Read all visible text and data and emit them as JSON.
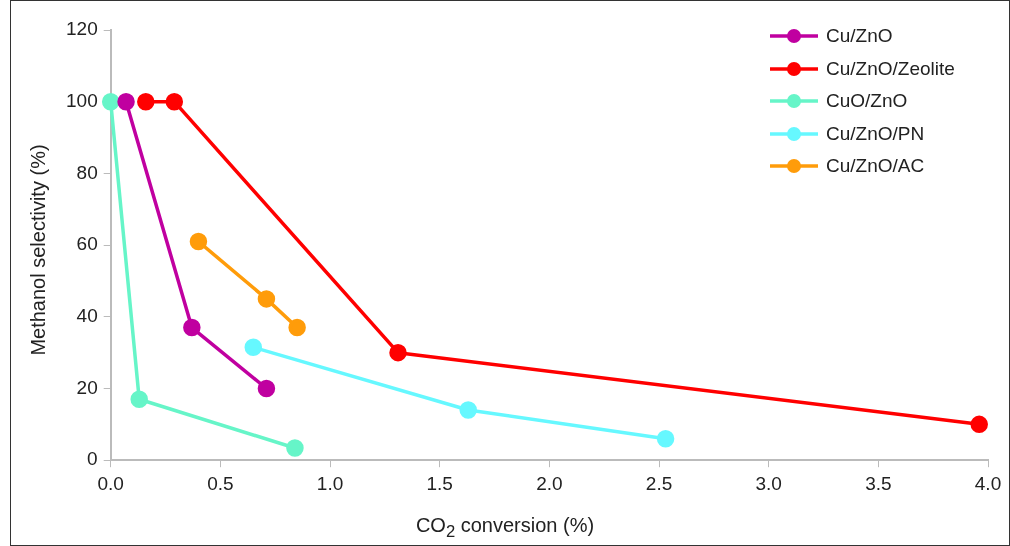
{
  "chart_data": {
    "type": "line",
    "xlabel": "CO$_{2}$ conversion (%)",
    "ylabel": "Methanol selectivity (%)",
    "xlim": [
      0,
      4
    ],
    "xticks": [
      {
        "value": 0,
        "label": "0.0"
      },
      {
        "value": 0.5,
        "label": "0.5"
      },
      {
        "value": 1,
        "label": "1.0"
      },
      {
        "value": 1.5,
        "label": "1.5"
      },
      {
        "value": 2,
        "label": "2.0"
      },
      {
        "value": 2.5,
        "label": "2.5"
      },
      {
        "value": 3,
        "label": "3.0"
      },
      {
        "value": 3.5,
        "label": "3.5"
      },
      {
        "value": 4,
        "label": "4.0"
      }
    ],
    "ylim": [
      0,
      120
    ],
    "yticks": [
      0,
      20,
      40,
      60,
      80,
      100,
      120
    ],
    "grid": false,
    "legend": "top right",
    "marker": "circle",
    "line_style": "solid",
    "series": [
      {
        "name": "Cu/ZnO",
        "color": "#c000a0",
        "x": [
          0.07,
          0.37,
          0.71
        ],
        "values": [
          100,
          37,
          20
        ]
      },
      {
        "name": "Cu/ZnO/Zeolite",
        "color": "#ff0000",
        "x": [
          0.16,
          0.29,
          1.31,
          3.96
        ],
        "values": [
          100,
          100,
          30,
          10
        ]
      },
      {
        "name": "CuO/ZnO",
        "color": "#66f5c8",
        "x": [
          0,
          0.13,
          0.84
        ],
        "values": [
          100,
          17,
          3.4
        ]
      },
      {
        "name": "Cu/ZnO/PN",
        "color": "#66f8ff",
        "x": [
          0.65,
          1.63,
          2.53
        ],
        "values": [
          31.5,
          14,
          6
        ]
      },
      {
        "name": "Cu/ZnO/AC",
        "color": "#ff9c0a",
        "x": [
          0.4,
          0.71,
          0.85
        ],
        "values": [
          61,
          45,
          37
        ]
      }
    ]
  }
}
